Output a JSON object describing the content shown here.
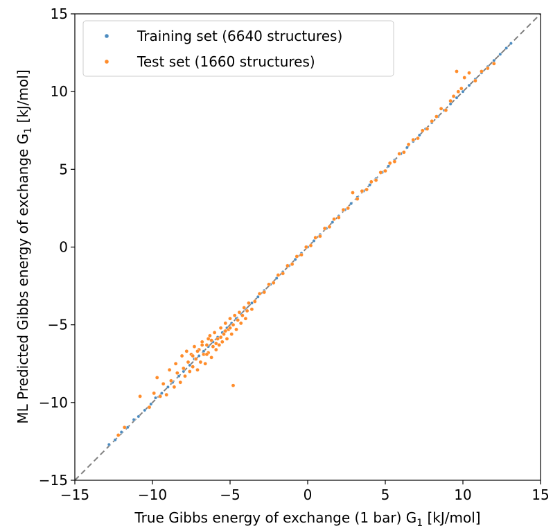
{
  "chart_data": {
    "type": "scatter",
    "title": "",
    "xlabel": "True Gibbs energy of exchange (1 bar) G",
    "xlabel_sub": "1",
    "xlabel_unit": " [kJ/mol]",
    "ylabel": "ML Predicted Gibbs energy of exchange G",
    "ylabel_sub": "1",
    "ylabel_unit": " [kJ/mol]",
    "xlim": [
      -15,
      15
    ],
    "ylim": [
      -15,
      15
    ],
    "xticks": [
      -15,
      -10,
      -5,
      0,
      5,
      10,
      15
    ],
    "yticks": [
      -15,
      -10,
      -5,
      0,
      5,
      10,
      15
    ],
    "xtick_labels": [
      "−15",
      "−10",
      "−5",
      "0",
      "5",
      "10",
      "15"
    ],
    "ytick_labels": [
      "−15",
      "−10",
      "−5",
      "0",
      "5",
      "10",
      "15"
    ],
    "grid": false,
    "legend_position": "top-left",
    "reference_line": {
      "style": "dashed",
      "color": "#808080",
      "from": [
        -15,
        -15
      ],
      "to": [
        15,
        15
      ]
    },
    "series": [
      {
        "name": "Training set (6640 structures)",
        "color": "#4c8bbf",
        "points": [
          [
            -12.8,
            -12.7
          ],
          [
            -12.4,
            -12.4
          ],
          [
            -12.0,
            -11.9
          ],
          [
            -11.6,
            -11.6
          ],
          [
            -11.2,
            -11.1
          ],
          [
            -10.9,
            -10.9
          ],
          [
            -10.5,
            -10.5
          ],
          [
            -10.1,
            -10.1
          ],
          [
            -9.8,
            -9.7
          ],
          [
            -9.4,
            -9.4
          ],
          [
            -9.0,
            -9.0
          ],
          [
            -8.7,
            -8.7
          ],
          [
            -8.3,
            -8.3
          ],
          [
            -8.0,
            -8.0
          ],
          [
            -7.6,
            -7.6
          ],
          [
            -7.3,
            -7.2
          ],
          [
            -7.0,
            -7.0
          ],
          [
            -6.7,
            -6.7
          ],
          [
            -6.4,
            -6.4
          ],
          [
            -6.1,
            -6.1
          ],
          [
            -5.8,
            -5.8
          ],
          [
            -5.5,
            -5.5
          ],
          [
            -5.2,
            -5.2
          ],
          [
            -4.9,
            -4.9
          ],
          [
            -4.6,
            -4.6
          ],
          [
            -4.3,
            -4.3
          ],
          [
            -4.0,
            -4.0
          ],
          [
            -3.6,
            -3.6
          ],
          [
            -3.2,
            -3.2
          ],
          [
            -2.8,
            -2.8
          ],
          [
            -2.4,
            -2.4
          ],
          [
            -2.0,
            -2.0
          ],
          [
            -1.6,
            -1.6
          ],
          [
            -1.2,
            -1.2
          ],
          [
            -0.8,
            -0.8
          ],
          [
            -0.4,
            -0.4
          ],
          [
            0.0,
            0.0
          ],
          [
            0.4,
            0.4
          ],
          [
            0.8,
            0.8
          ],
          [
            1.2,
            1.2
          ],
          [
            1.6,
            1.6
          ],
          [
            2.0,
            2.0
          ],
          [
            2.4,
            2.4
          ],
          [
            2.8,
            2.8
          ],
          [
            3.2,
            3.2
          ],
          [
            3.6,
            3.6
          ],
          [
            4.0,
            4.0
          ],
          [
            4.4,
            4.4
          ],
          [
            4.8,
            4.8
          ],
          [
            5.2,
            5.2
          ],
          [
            5.6,
            5.6
          ],
          [
            6.0,
            6.0
          ],
          [
            6.4,
            6.4
          ],
          [
            6.8,
            6.8
          ],
          [
            7.2,
            7.2
          ],
          [
            7.6,
            7.6
          ],
          [
            8.0,
            8.0
          ],
          [
            8.4,
            8.4
          ],
          [
            8.8,
            8.8
          ],
          [
            9.2,
            9.2
          ],
          [
            9.6,
            9.6
          ],
          [
            10.0,
            10.0
          ],
          [
            10.4,
            10.4
          ],
          [
            10.8,
            10.8
          ],
          [
            11.2,
            11.2
          ],
          [
            11.6,
            11.6
          ],
          [
            12.0,
            12.0
          ],
          [
            12.4,
            12.4
          ],
          [
            12.8,
            12.8
          ],
          [
            13.1,
            13.1
          ]
        ]
      },
      {
        "name": "Test set (1660 structures)",
        "color": "#ff8c2a",
        "points": [
          [
            -12.2,
            -12.1
          ],
          [
            -11.8,
            -11.6
          ],
          [
            -10.8,
            -9.6
          ],
          [
            -10.2,
            -10.3
          ],
          [
            -9.9,
            -9.4
          ],
          [
            -9.7,
            -8.4
          ],
          [
            -9.5,
            -9.6
          ],
          [
            -9.3,
            -8.8
          ],
          [
            -9.1,
            -9.5
          ],
          [
            -8.9,
            -7.9
          ],
          [
            -8.8,
            -8.6
          ],
          [
            -8.6,
            -9.0
          ],
          [
            -8.5,
            -7.5
          ],
          [
            -8.4,
            -8.1
          ],
          [
            -8.2,
            -8.7
          ],
          [
            -8.1,
            -7.0
          ],
          [
            -8.0,
            -7.8
          ],
          [
            -7.9,
            -8.3
          ],
          [
            -7.8,
            -6.7
          ],
          [
            -7.7,
            -7.4
          ],
          [
            -7.6,
            -8.0
          ],
          [
            -7.5,
            -6.9
          ],
          [
            -7.4,
            -7.7
          ],
          [
            -7.3,
            -6.4
          ],
          [
            -7.2,
            -7.2
          ],
          [
            -7.1,
            -7.9
          ],
          [
            -7.0,
            -6.6
          ],
          [
            -6.9,
            -7.4
          ],
          [
            -6.8,
            -6.1
          ],
          [
            -6.7,
            -6.9
          ],
          [
            -6.6,
            -7.5
          ],
          [
            -6.5,
            -6.3
          ],
          [
            -6.4,
            -6.8
          ],
          [
            -6.3,
            -5.7
          ],
          [
            -6.2,
            -7.1
          ],
          [
            -6.1,
            -6.4
          ],
          [
            -6.0,
            -5.5
          ],
          [
            -5.9,
            -6.6
          ],
          [
            -5.8,
            -5.9
          ],
          [
            -5.7,
            -6.3
          ],
          [
            -5.6,
            -5.2
          ],
          [
            -5.5,
            -6.1
          ],
          [
            -5.4,
            -5.6
          ],
          [
            -5.3,
            -4.9
          ],
          [
            -5.2,
            -5.9
          ],
          [
            -5.1,
            -5.3
          ],
          [
            -5.0,
            -4.6
          ],
          [
            -4.9,
            -5.6
          ],
          [
            -4.8,
            -5.0
          ],
          [
            -4.7,
            -4.4
          ],
          [
            -4.6,
            -5.3
          ],
          [
            -4.5,
            -4.7
          ],
          [
            -4.4,
            -4.2
          ],
          [
            -4.3,
            -4.9
          ],
          [
            -4.2,
            -4.4
          ],
          [
            -4.1,
            -3.9
          ],
          [
            -4.0,
            -4.6
          ],
          [
            -3.9,
            -4.1
          ],
          [
            -3.8,
            -3.6
          ],
          [
            -3.6,
            -4.0
          ],
          [
            -6.5,
            -6.9
          ],
          [
            -6.8,
            -6.3
          ],
          [
            -7.1,
            -6.7
          ],
          [
            -6.2,
            -6.0
          ],
          [
            -5.9,
            -6.2
          ],
          [
            -5.6,
            -5.8
          ],
          [
            -6.4,
            -5.9
          ],
          [
            -7.4,
            -7.0
          ],
          [
            -5.3,
            -5.4
          ],
          [
            -5.0,
            -5.2
          ],
          [
            -4.8,
            -8.9
          ],
          [
            -3.4,
            -3.5
          ],
          [
            -3.1,
            -3.0
          ],
          [
            -2.8,
            -2.9
          ],
          [
            -2.5,
            -2.4
          ],
          [
            -2.2,
            -2.3
          ],
          [
            -1.9,
            -1.8
          ],
          [
            -1.6,
            -1.7
          ],
          [
            -1.3,
            -1.2
          ],
          [
            -1.0,
            -1.1
          ],
          [
            -0.7,
            -0.6
          ],
          [
            -0.4,
            -0.5
          ],
          [
            -0.1,
            0.0
          ],
          [
            0.2,
            0.1
          ],
          [
            0.5,
            0.6
          ],
          [
            0.8,
            0.7
          ],
          [
            1.1,
            1.2
          ],
          [
            1.4,
            1.3
          ],
          [
            1.7,
            1.8
          ],
          [
            2.0,
            1.9
          ],
          [
            2.3,
            2.4
          ],
          [
            2.6,
            2.5
          ],
          [
            2.9,
            3.5
          ],
          [
            3.2,
            3.1
          ],
          [
            3.5,
            3.6
          ],
          [
            3.8,
            3.7
          ],
          [
            4.1,
            4.2
          ],
          [
            4.4,
            4.3
          ],
          [
            4.7,
            4.8
          ],
          [
            5.0,
            4.9
          ],
          [
            5.3,
            5.4
          ],
          [
            5.6,
            5.5
          ],
          [
            5.9,
            6.0
          ],
          [
            6.2,
            6.1
          ],
          [
            6.5,
            6.6
          ],
          [
            6.8,
            6.9
          ],
          [
            7.1,
            7.0
          ],
          [
            7.4,
            7.5
          ],
          [
            7.7,
            7.6
          ],
          [
            8.0,
            8.1
          ],
          [
            8.3,
            8.4
          ],
          [
            8.6,
            8.9
          ],
          [
            8.9,
            8.8
          ],
          [
            9.2,
            9.4
          ],
          [
            9.4,
            9.7
          ],
          [
            9.6,
            11.3
          ],
          [
            9.7,
            10.0
          ],
          [
            9.9,
            10.2
          ],
          [
            10.1,
            10.9
          ],
          [
            10.4,
            11.2
          ],
          [
            10.8,
            10.7
          ],
          [
            11.2,
            11.3
          ],
          [
            11.6,
            11.5
          ],
          [
            12.0,
            11.8
          ]
        ]
      }
    ]
  }
}
